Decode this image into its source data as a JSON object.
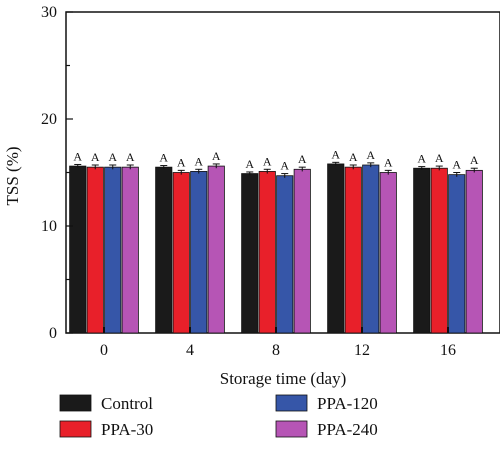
{
  "chart_data": {
    "type": "bar",
    "title": "",
    "xlabel": "Storage time (day)",
    "ylabel": "TSS (%)",
    "ylim": [
      0,
      30
    ],
    "yticks": [
      0,
      10,
      20,
      30
    ],
    "categories": [
      "0",
      "4",
      "8",
      "12",
      "16"
    ],
    "grid": false,
    "legend_position": "bottom",
    "series": [
      {
        "name": "Control",
        "color": "#1a1a1a",
        "values": [
          15.6,
          15.5,
          14.9,
          15.8,
          15.4
        ],
        "errors": [
          0.15,
          0.15,
          0.15,
          0.15,
          0.15
        ],
        "labels": [
          "A",
          "A",
          "A",
          "A",
          "A"
        ]
      },
      {
        "name": "PPA-30",
        "color": "#e8202a",
        "values": [
          15.5,
          15.0,
          15.1,
          15.5,
          15.4
        ],
        "errors": [
          0.2,
          0.2,
          0.2,
          0.2,
          0.2
        ],
        "labels": [
          "A",
          "A",
          "A",
          "A",
          "A"
        ]
      },
      {
        "name": "PPA-120",
        "color": "#3656a8",
        "values": [
          15.5,
          15.1,
          14.7,
          15.7,
          14.8
        ],
        "errors": [
          0.2,
          0.2,
          0.2,
          0.2,
          0.2
        ],
        "labels": [
          "A",
          "A",
          "A",
          "A",
          "A"
        ]
      },
      {
        "name": "PPA-240",
        "color": "#b655b5",
        "values": [
          15.5,
          15.6,
          15.3,
          15.0,
          15.2
        ],
        "errors": [
          0.2,
          0.2,
          0.2,
          0.2,
          0.2
        ],
        "labels": [
          "A",
          "A",
          "A",
          "A",
          "A"
        ]
      }
    ]
  }
}
